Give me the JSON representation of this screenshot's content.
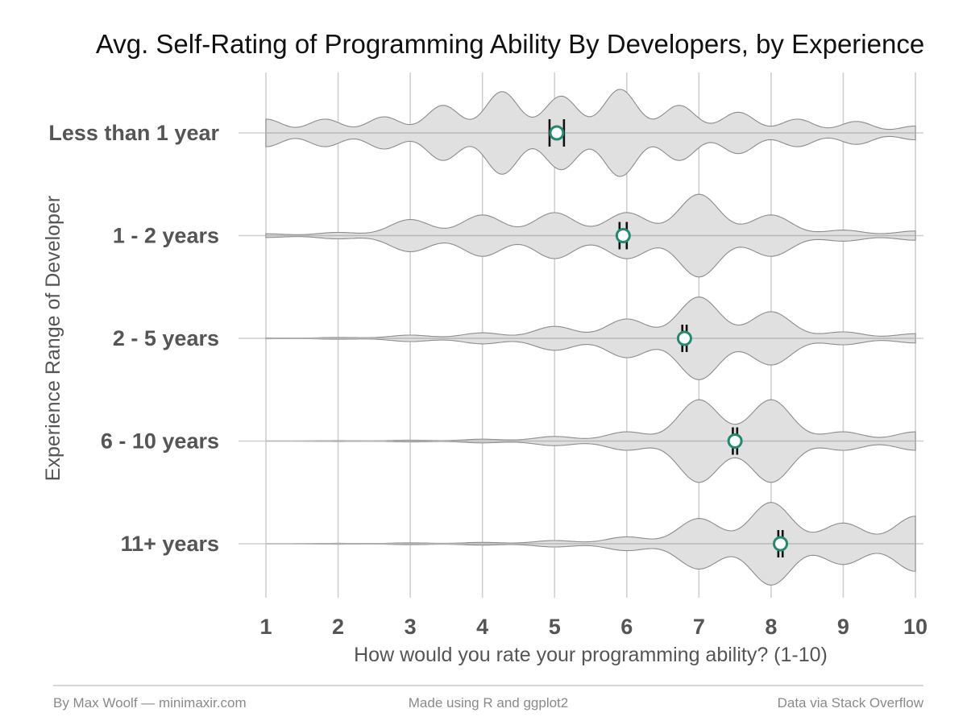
{
  "chart_data": {
    "type": "violin",
    "title": "Avg. Self-Rating of Programming Ability By Developers, by Experience",
    "xlabel": "How would you rate your programming ability? (1-10)",
    "ylabel": "Experience Range of Developer",
    "xlim": [
      1,
      10
    ],
    "x_ticks": [
      "1",
      "2",
      "3",
      "4",
      "5",
      "6",
      "7",
      "8",
      "9",
      "10"
    ],
    "grid": true,
    "violin_fill": "#e0e0e0",
    "violin_stroke": "#8c8c8c",
    "mean_marker_color": "#1f8a6e",
    "categories": [
      "Less than 1 year",
      "1 - 2 years",
      "2 - 5 years",
      "6 - 10 years",
      "11+ years"
    ],
    "series": [
      {
        "category": "Less than 1 year",
        "mean": 5.03,
        "ci": [
          4.93,
          5.13
        ],
        "density": [
          0.3,
          0.3,
          0.35,
          0.6,
          0.9,
          0.8,
          0.95,
          0.6,
          0.45,
          0.3,
          0.25,
          0.15
        ]
      },
      {
        "category": "1 - 2 years",
        "mean": 5.95,
        "ci": [
          5.9,
          6.0
        ],
        "density": [
          0.04,
          0.07,
          0.35,
          0.45,
          0.5,
          0.5,
          0.9,
          0.45,
          0.12,
          0.1
        ]
      },
      {
        "category": "2 - 5 years",
        "mean": 6.8,
        "ci": [
          6.77,
          6.83
        ],
        "density": [
          0.01,
          0.02,
          0.07,
          0.12,
          0.26,
          0.42,
          0.9,
          0.58,
          0.14,
          0.1
        ]
      },
      {
        "category": "6 - 10 years",
        "mean": 7.5,
        "ci": [
          7.47,
          7.53
        ],
        "density": [
          0.0,
          0.01,
          0.02,
          0.04,
          0.1,
          0.2,
          0.9,
          0.9,
          0.2,
          0.2
        ]
      },
      {
        "category": "11+ years",
        "mean": 8.13,
        "ci": [
          8.1,
          8.16
        ],
        "density": [
          0.0,
          0.01,
          0.02,
          0.03,
          0.07,
          0.15,
          0.55,
          0.9,
          0.45,
          0.6
        ]
      }
    ]
  },
  "footer": {
    "left": "By Max Woolf — minimaxir.com",
    "center": "Made using R and ggplot2",
    "right": "Data via Stack Overflow"
  }
}
